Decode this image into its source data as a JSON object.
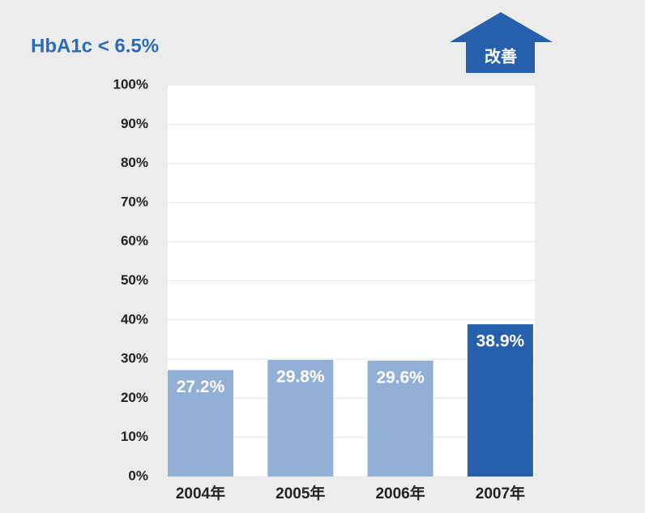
{
  "chart_data": {
    "type": "bar",
    "title": "HbA1c < 6.5%",
    "badge": "改善",
    "categories": [
      "2004年",
      "2005年",
      "2006年",
      "2007年"
    ],
    "values": [
      27.2,
      29.8,
      29.6,
      38.9
    ],
    "value_labels": [
      "27.2%",
      "29.8%",
      "29.6%",
      "38.9%"
    ],
    "colors": [
      "#92b0d6",
      "#92b0d6",
      "#92b0d6",
      "#2660ad"
    ],
    "ylim": [
      0,
      100
    ],
    "yticks": [
      {
        "value": 0,
        "label": "0%"
      },
      {
        "value": 10,
        "label": "10%"
      },
      {
        "value": 20,
        "label": "20%"
      },
      {
        "value": 30,
        "label": "30%"
      },
      {
        "value": 40,
        "label": "40%"
      },
      {
        "value": 50,
        "label": "50%"
      },
      {
        "value": 60,
        "label": "60%"
      },
      {
        "value": 70,
        "label": "70%"
      },
      {
        "value": 80,
        "label": "80%"
      },
      {
        "value": 90,
        "label": "90%"
      },
      {
        "value": 100,
        "label": "100%"
      }
    ],
    "grid": true
  }
}
